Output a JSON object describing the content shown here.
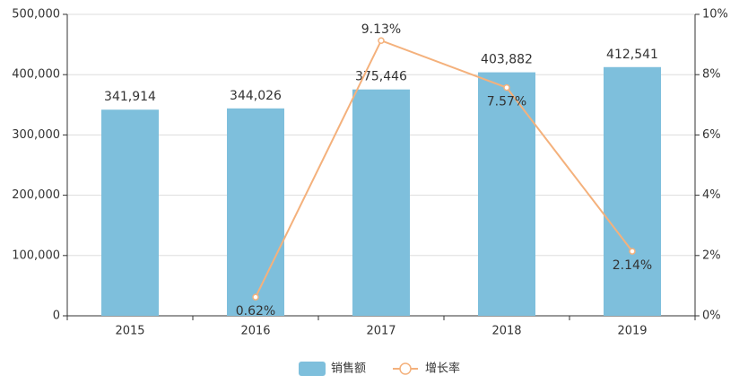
{
  "chart_data": {
    "type": "bar",
    "categories": [
      "2015",
      "2016",
      "2017",
      "2018",
      "2019"
    ],
    "series": [
      {
        "name": "销售额",
        "color": "#7ebfdc",
        "values": [
          341914,
          344026,
          375446,
          403882,
          412541
        ],
        "value_labels": [
          "341,914",
          "344,026",
          "375,446",
          "403,882",
          "412,541"
        ]
      },
      {
        "name": "增长率",
        "type": "line",
        "axis": "y2",
        "color": "#f4b17c",
        "values": [
          null,
          0.62,
          9.13,
          7.57,
          2.14
        ],
        "value_labels": [
          null,
          "0.62%",
          "9.13%",
          "7.57%",
          "2.14%"
        ]
      }
    ],
    "ylim": [
      0,
      500000
    ],
    "yticks": [
      0,
      {
        "value": 100000,
        "label": "100,000"
      },
      {
        "value": 200000,
        "label": "200,000"
      },
      {
        "value": 300000,
        "label": "300,000"
      },
      {
        "value": 400000,
        "label": "400,000"
      },
      {
        "value": 500000,
        "label": "500,000"
      }
    ],
    "y2lim": [
      0,
      10
    ],
    "y2ticks": [
      {
        "value": 0,
        "label": "0%"
      },
      {
        "value": 2,
        "label": "2%"
      },
      {
        "value": 4,
        "label": "4%"
      },
      {
        "value": 6,
        "label": "6%"
      },
      {
        "value": 8,
        "label": "8%"
      },
      {
        "value": 10,
        "label": "10%"
      }
    ],
    "grid": true,
    "legend": "bottom"
  }
}
